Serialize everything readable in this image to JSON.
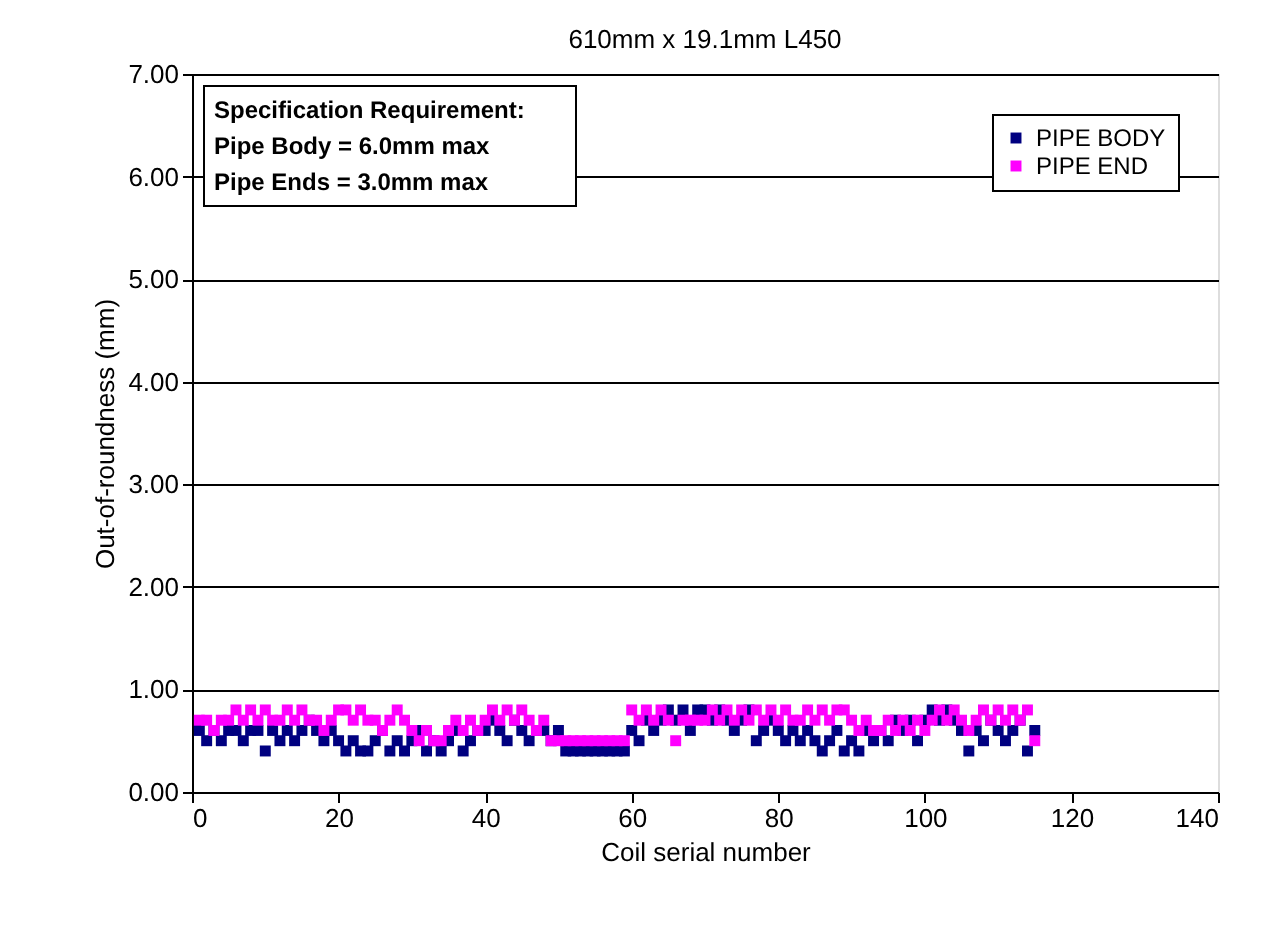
{
  "chart_data": {
    "type": "scatter",
    "title": "610mm x 19.1mm L450",
    "xlabel": "Coil serial number",
    "ylabel": "Out-of-roundness (mm)",
    "x": [
      1,
      2,
      3,
      4,
      5,
      6,
      7,
      8,
      9,
      10,
      11,
      12,
      13,
      14,
      15,
      16,
      17,
      18,
      19,
      20,
      21,
      22,
      23,
      24,
      25,
      26,
      27,
      28,
      29,
      30,
      31,
      32,
      33,
      34,
      35,
      36,
      37,
      38,
      39,
      40,
      41,
      42,
      43,
      44,
      45,
      46,
      47,
      48,
      49,
      50,
      51,
      52,
      53,
      54,
      55,
      56,
      57,
      58,
      59,
      60,
      61,
      62,
      63,
      64,
      65,
      66,
      67,
      68,
      69,
      70,
      71,
      72,
      73,
      74,
      75,
      76,
      77,
      78,
      79,
      80,
      81,
      82,
      83,
      84,
      85,
      86,
      87,
      88,
      89,
      90,
      91,
      92,
      93,
      94,
      95,
      96,
      97,
      98,
      99,
      100,
      101,
      102,
      103,
      104,
      105,
      106,
      107,
      108,
      109,
      110,
      111,
      112,
      113,
      114,
      115
    ],
    "series": [
      {
        "name": "PIPE BODY",
        "color": "#000080",
        "values": [
          0.6,
          0.5,
          0.6,
          0.5,
          0.6,
          0.6,
          0.5,
          0.6,
          0.6,
          0.4,
          0.6,
          0.5,
          0.6,
          0.5,
          0.6,
          0.7,
          0.6,
          0.5,
          0.6,
          0.5,
          0.4,
          0.5,
          0.4,
          0.4,
          0.5,
          0.6,
          0.4,
          0.5,
          0.4,
          0.5,
          0.6,
          0.4,
          0.5,
          0.4,
          0.5,
          0.6,
          0.4,
          0.5,
          0.6,
          0.6,
          0.7,
          0.6,
          0.5,
          0.7,
          0.6,
          0.5,
          0.6,
          0.6,
          0.5,
          0.6,
          0.4,
          0.4,
          0.4,
          0.4,
          0.4,
          0.4,
          0.4,
          0.4,
          0.4,
          0.6,
          0.5,
          0.7,
          0.6,
          0.7,
          0.8,
          0.7,
          0.8,
          0.6,
          0.8,
          0.8,
          0.7,
          0.8,
          0.7,
          0.6,
          0.7,
          0.8,
          0.5,
          0.6,
          0.7,
          0.6,
          0.5,
          0.6,
          0.5,
          0.6,
          0.5,
          0.4,
          0.5,
          0.6,
          0.4,
          0.5,
          0.4,
          0.6,
          0.5,
          0.6,
          0.5,
          0.7,
          0.6,
          0.7,
          0.5,
          0.7,
          0.8,
          0.7,
          0.8,
          0.7,
          0.6,
          0.4,
          0.6,
          0.5,
          0.7,
          0.6,
          0.5,
          0.6,
          0.7,
          0.4,
          0.6
        ]
      },
      {
        "name": "PIPE END",
        "color": "#ff00ff",
        "values": [
          0.7,
          0.7,
          0.6,
          0.7,
          0.7,
          0.8,
          0.7,
          0.8,
          0.7,
          0.8,
          0.7,
          0.7,
          0.8,
          0.7,
          0.8,
          0.7,
          0.7,
          0.6,
          0.7,
          0.8,
          0.8,
          0.7,
          0.8,
          0.7,
          0.7,
          0.6,
          0.7,
          0.8,
          0.7,
          0.6,
          0.5,
          0.6,
          0.5,
          0.5,
          0.6,
          0.7,
          0.6,
          0.7,
          0.6,
          0.7,
          0.8,
          0.7,
          0.8,
          0.7,
          0.8,
          0.7,
          0.6,
          0.7,
          0.5,
          0.5,
          0.5,
          0.5,
          0.5,
          0.5,
          0.5,
          0.5,
          0.5,
          0.5,
          0.5,
          0.8,
          0.7,
          0.8,
          0.7,
          0.8,
          0.7,
          0.5,
          0.7,
          0.7,
          0.7,
          0.7,
          0.8,
          0.7,
          0.8,
          0.7,
          0.8,
          0.7,
          0.8,
          0.7,
          0.8,
          0.7,
          0.8,
          0.7,
          0.7,
          0.8,
          0.7,
          0.8,
          0.7,
          0.8,
          0.8,
          0.7,
          0.6,
          0.7,
          0.6,
          0.6,
          0.7,
          0.6,
          0.7,
          0.6,
          0.7,
          0.6,
          0.7,
          0.8,
          0.7,
          0.8,
          0.7,
          0.6,
          0.7,
          0.8,
          0.7,
          0.8,
          0.7,
          0.8,
          0.7,
          0.8,
          0.5
        ]
      }
    ],
    "xlim": [
      0,
      140
    ],
    "xticks": [
      0,
      20,
      40,
      60,
      80,
      100,
      120,
      140
    ],
    "ylim": [
      0,
      7
    ],
    "yticks": [
      {
        "value": 0,
        "label": "0.00"
      },
      {
        "value": 1,
        "label": "1.00"
      },
      {
        "value": 2,
        "label": "2.00"
      },
      {
        "value": 3,
        "label": "3.00"
      },
      {
        "value": 4,
        "label": "4.00"
      },
      {
        "value": 5,
        "label": "5.00"
      },
      {
        "value": 6,
        "label": "6.00"
      },
      {
        "value": 7,
        "label": "7.00"
      }
    ],
    "annotations": [
      "Specification Requirement:",
      "Pipe Body = 6.0mm max",
      "Pipe Ends = 3.0mm max"
    ],
    "grid": "y",
    "legend": "top right",
    "marker": "square"
  }
}
